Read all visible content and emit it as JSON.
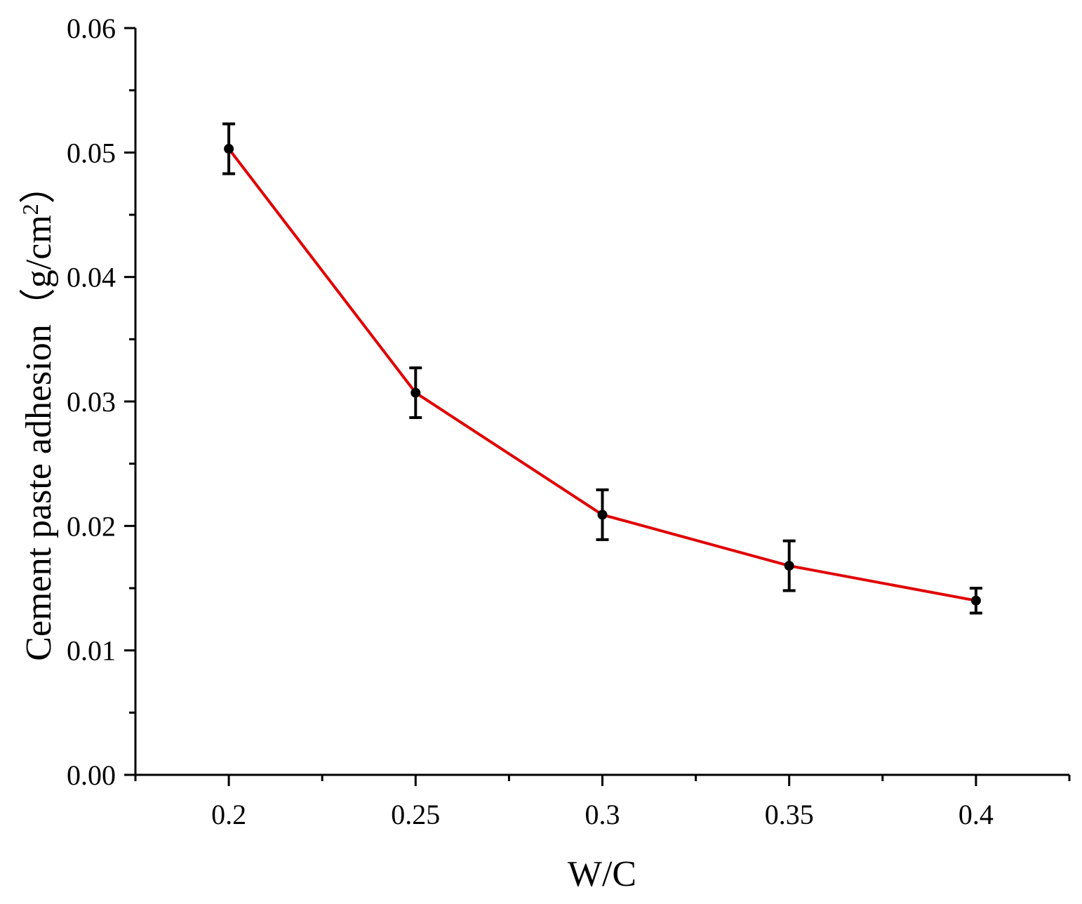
{
  "chart_data": {
    "type": "line",
    "title": "",
    "xlabel": "W/C",
    "ylabel_main": "Cement paste adhesion（g/cm",
    "ylabel_sup": "2",
    "ylabel_close": "）",
    "xlim": [
      0.175,
      0.425
    ],
    "ylim": [
      0,
      0.06
    ],
    "x_ticks": [
      0.2,
      0.25,
      0.3,
      0.35,
      0.4
    ],
    "x_tick_labels": [
      "0.2",
      "0.25",
      "0.3",
      "0.35",
      "0.4"
    ],
    "x_minor_ticks": [
      0.175,
      0.225,
      0.275,
      0.325,
      0.375,
      0.425
    ],
    "y_ticks": [
      0,
      0.01,
      0.02,
      0.03,
      0.04,
      0.05,
      0.06
    ],
    "y_tick_labels": [
      "0.00",
      "0.01",
      "0.02",
      "0.03",
      "0.04",
      "0.05",
      "0.06"
    ],
    "y_minor_ticks": [
      0.005,
      0.015,
      0.025,
      0.035,
      0.045,
      0.055
    ],
    "grid": false,
    "series": [
      {
        "name": "Cement paste adhesion",
        "color": "#e00000",
        "marker_color": "#000000",
        "x": [
          0.2,
          0.25,
          0.3,
          0.35,
          0.4
        ],
        "y": [
          0.0503,
          0.0307,
          0.0209,
          0.0168,
          0.014
        ],
        "error": [
          0.002,
          0.002,
          0.002,
          0.002,
          0.001
        ]
      }
    ]
  }
}
